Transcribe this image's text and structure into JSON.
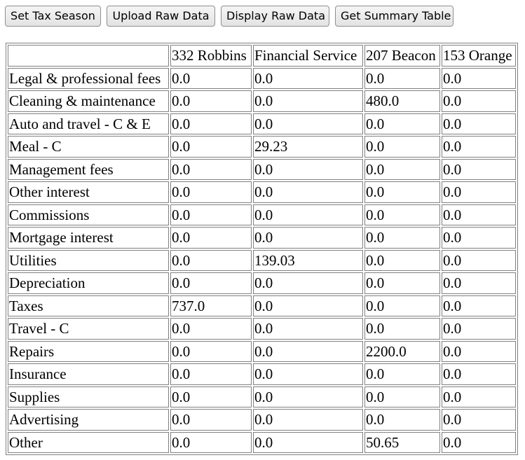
{
  "toolbar": {
    "buttons": [
      {
        "label": "Set Tax Season"
      },
      {
        "label": "Upload Raw Data"
      },
      {
        "label": "Display Raw Data"
      },
      {
        "label": "Get Summary Table"
      }
    ]
  },
  "table": {
    "headers": [
      "",
      "332 Robbins",
      "Financial Service",
      "207 Beacon",
      "153 Orange"
    ],
    "rows": [
      [
        "Legal & professional fees",
        "0.0",
        "0.0",
        "0.0",
        "0.0"
      ],
      [
        "Cleaning & maintenance",
        "0.0",
        "0.0",
        "480.0",
        "0.0"
      ],
      [
        "Auto and travel - C & E",
        "0.0",
        "0.0",
        "0.0",
        "0.0"
      ],
      [
        "Meal - C",
        "0.0",
        "29.23",
        "0.0",
        "0.0"
      ],
      [
        "Management fees",
        "0.0",
        "0.0",
        "0.0",
        "0.0"
      ],
      [
        "Other interest",
        "0.0",
        "0.0",
        "0.0",
        "0.0"
      ],
      [
        "Commissions",
        "0.0",
        "0.0",
        "0.0",
        "0.0"
      ],
      [
        "Mortgage interest",
        "0.0",
        "0.0",
        "0.0",
        "0.0"
      ],
      [
        "Utilities",
        "0.0",
        "139.03",
        "0.0",
        "0.0"
      ],
      [
        "Depreciation",
        "0.0",
        "0.0",
        "0.0",
        "0.0"
      ],
      [
        "Taxes",
        "737.0",
        "0.0",
        "0.0",
        "0.0"
      ],
      [
        "Travel - C",
        "0.0",
        "0.0",
        "0.0",
        "0.0"
      ],
      [
        "Repairs",
        "0.0",
        "0.0",
        "2200.0",
        "0.0"
      ],
      [
        "Insurance",
        "0.0",
        "0.0",
        "0.0",
        "0.0"
      ],
      [
        "Supplies",
        "0.0",
        "0.0",
        "0.0",
        "0.0"
      ],
      [
        "Advertising",
        "0.0",
        "0.0",
        "0.0",
        "0.0"
      ],
      [
        "Other",
        "0.0",
        "0.0",
        "50.65",
        "0.0"
      ]
    ]
  }
}
